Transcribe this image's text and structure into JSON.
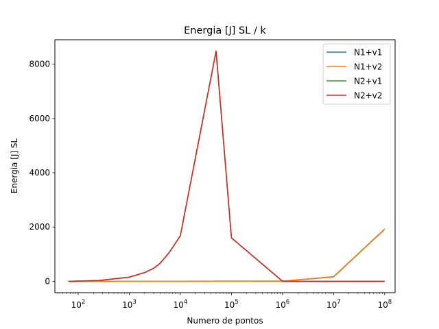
{
  "chart_data": {
    "type": "line",
    "title": "Energia [J] SL / k",
    "xlabel": "Numero de pontos",
    "ylabel": "Energia [J] SL",
    "xscale": "log",
    "xlim": [
      35,
      160000000
    ],
    "ylim": [
      -420,
      8900
    ],
    "xticks": [
      {
        "value": 100,
        "label_base": "10",
        "label_exp": "2"
      },
      {
        "value": 1000,
        "label_base": "10",
        "label_exp": "3"
      },
      {
        "value": 10000,
        "label_base": "10",
        "label_exp": "4"
      },
      {
        "value": 100000,
        "label_base": "10",
        "label_exp": "5"
      },
      {
        "value": 1000000,
        "label_base": "10",
        "label_exp": "6"
      },
      {
        "value": 10000000,
        "label_base": "10",
        "label_exp": "7"
      },
      {
        "value": 100000000,
        "label_base": "10",
        "label_exp": "8"
      }
    ],
    "yticks": [
      {
        "value": 0,
        "label": "0"
      },
      {
        "value": 2000,
        "label": "2000"
      },
      {
        "value": 4000,
        "label": "4000"
      },
      {
        "value": 6000,
        "label": "6000"
      },
      {
        "value": 8000,
        "label": "8000"
      }
    ],
    "grid": false,
    "legend_position": "top-right",
    "series": [
      {
        "name": "N1+v1",
        "color": "#1f77b4",
        "x": [
          64,
          1000000,
          10000000,
          100000000
        ],
        "y": [
          0,
          5,
          160,
          1920
        ]
      },
      {
        "name": "N1+v2",
        "color": "#ff7f0e",
        "x": [
          64,
          1000000,
          10000000,
          100000000
        ],
        "y": [
          0,
          5,
          170,
          1930
        ]
      },
      {
        "name": "N2+v1",
        "color": "#2ca02c",
        "x": [
          64,
          256,
          1000,
          2000,
          3000,
          4000,
          6000,
          10000,
          50000,
          100000,
          1000000,
          10000000,
          100000000
        ],
        "y": [
          0,
          30,
          150,
          320,
          480,
          660,
          1050,
          1680,
          8480,
          1600,
          0,
          0,
          0
        ]
      },
      {
        "name": "N2+v2",
        "color": "#d62728",
        "x": [
          64,
          256,
          1000,
          2000,
          3000,
          4000,
          6000,
          10000,
          50000,
          100000,
          1000000,
          10000000,
          100000000
        ],
        "y": [
          0,
          30,
          150,
          320,
          480,
          660,
          1050,
          1680,
          8480,
          1600,
          0,
          0,
          0
        ]
      }
    ]
  }
}
